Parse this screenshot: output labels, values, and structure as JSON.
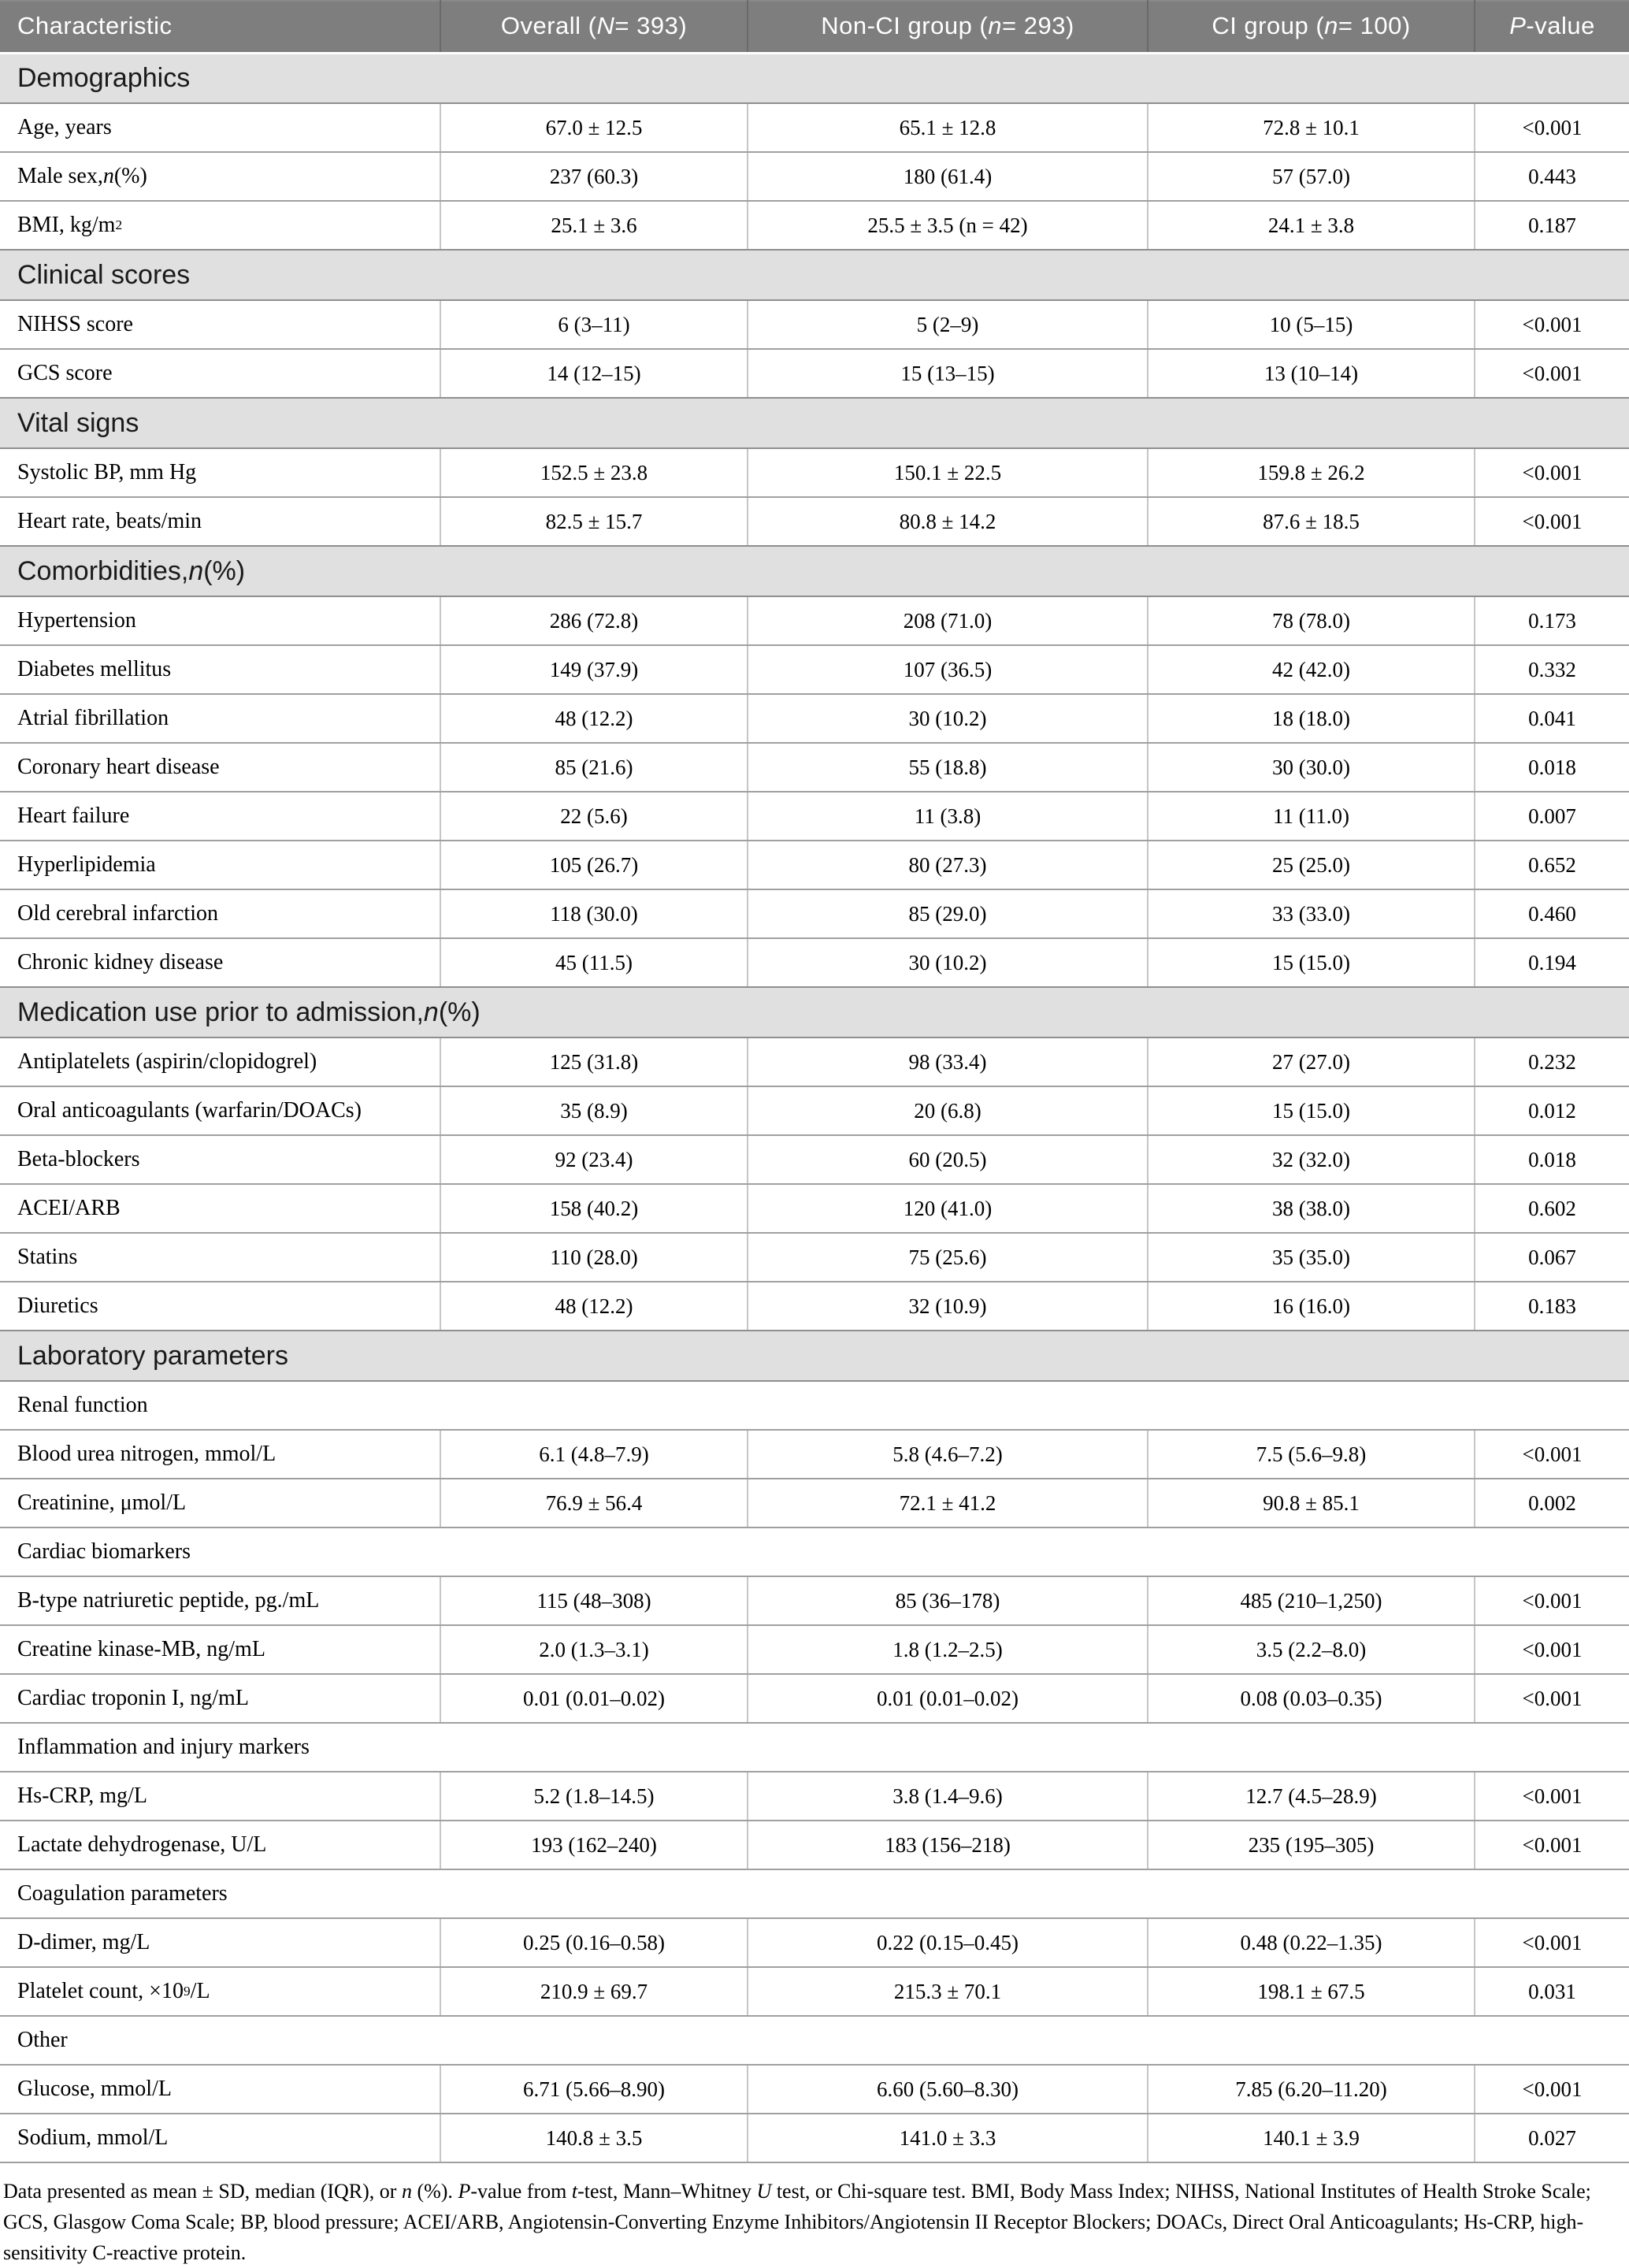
{
  "table": {
    "colors": {
      "page_bg": "#ffffff",
      "header_bg": "#7e7e7e",
      "header_text": "#ffffff",
      "header_divider": "#6a6a6a",
      "section_bg": "#e0e0e0",
      "section_text": "#1a1a1a",
      "body_text": "#111111",
      "row_divider": "#a0a0a0",
      "column_divider": "#c6c6c6"
    },
    "header": {
      "cells": [
        {
          "rich": "Characteristic"
        },
        {
          "rich": "Overall (<i>N</i> = 393)"
        },
        {
          "rich": "Non-CI group (<i>n</i> = 293)"
        },
        {
          "rich": "CI group (<i>n</i> = 100)"
        },
        {
          "rich": "<i>P</i>-value"
        }
      ]
    },
    "rows": [
      {
        "type": "section",
        "label": "Demographics"
      },
      {
        "type": "data",
        "label": "Age, years",
        "values": [
          "67.0 ± 12.5",
          "65.1 ± 12.8",
          "72.8 ± 10.1",
          "<0.001"
        ]
      },
      {
        "type": "data",
        "label": "Male sex, <i>n</i> (%)",
        "values": [
          "237 (60.3)",
          "180 (61.4)",
          "57 (57.0)",
          "0.443"
        ]
      },
      {
        "type": "data",
        "label": "BMI, kg/m<sup>2</sup>",
        "values": [
          "25.1 ± 3.6",
          "25.5 ± 3.5 (n = 42)",
          "24.1 ± 3.8",
          "0.187"
        ]
      },
      {
        "type": "section",
        "label": "Clinical scores"
      },
      {
        "type": "data",
        "label": "NIHSS score",
        "values": [
          "6 (3–11)",
          "5 (2–9)",
          "10 (5–15)",
          "<0.001"
        ]
      },
      {
        "type": "data",
        "label": "GCS score",
        "values": [
          "14 (12–15)",
          "15 (13–15)",
          "13 (10–14)",
          "<0.001"
        ]
      },
      {
        "type": "section",
        "label": "Vital signs"
      },
      {
        "type": "data",
        "label": "Systolic BP, mm Hg",
        "values": [
          "152.5 ± 23.8",
          "150.1 ± 22.5",
          "159.8 ± 26.2",
          "<0.001"
        ]
      },
      {
        "type": "data",
        "label": "Heart rate, beats/min",
        "values": [
          "82.5 ± 15.7",
          "80.8 ± 14.2",
          "87.6 ± 18.5",
          "<0.001"
        ]
      },
      {
        "type": "section",
        "label": "Comorbidities, <i>n</i> (%)"
      },
      {
        "type": "data",
        "label": "Hypertension",
        "values": [
          "286 (72.8)",
          "208 (71.0)",
          "78 (78.0)",
          "0.173"
        ]
      },
      {
        "type": "data",
        "label": "Diabetes mellitus",
        "values": [
          "149 (37.9)",
          "107 (36.5)",
          "42 (42.0)",
          "0.332"
        ]
      },
      {
        "type": "data",
        "label": "Atrial fibrillation",
        "values": [
          "48 (12.2)",
          "30 (10.2)",
          "18 (18.0)",
          "0.041"
        ]
      },
      {
        "type": "data",
        "label": "Coronary heart disease",
        "values": [
          "85 (21.6)",
          "55 (18.8)",
          "30 (30.0)",
          "0.018"
        ]
      },
      {
        "type": "data",
        "label": "Heart failure",
        "values": [
          "22 (5.6)",
          "11 (3.8)",
          "11 (11.0)",
          "0.007"
        ]
      },
      {
        "type": "data",
        "label": "Hyperlipidemia",
        "values": [
          "105 (26.7)",
          "80 (27.3)",
          "25 (25.0)",
          "0.652"
        ]
      },
      {
        "type": "data",
        "label": "Old cerebral infarction",
        "values": [
          "118 (30.0)",
          "85 (29.0)",
          "33 (33.0)",
          "0.460"
        ]
      },
      {
        "type": "data",
        "label": "Chronic kidney disease",
        "values": [
          "45 (11.5)",
          "30 (10.2)",
          "15 (15.0)",
          "0.194"
        ]
      },
      {
        "type": "section",
        "label": "Medication use prior to admission, <i>n</i> (%)"
      },
      {
        "type": "data",
        "label": "Antiplatelets (aspirin/clopidogrel)",
        "values": [
          "125 (31.8)",
          "98 (33.4)",
          "27 (27.0)",
          "0.232"
        ]
      },
      {
        "type": "data",
        "label": "Oral anticoagulants (warfarin/DOACs)",
        "values": [
          "35 (8.9)",
          "20 (6.8)",
          "15 (15.0)",
          "0.012"
        ]
      },
      {
        "type": "data",
        "label": "Beta-blockers",
        "values": [
          "92 (23.4)",
          "60 (20.5)",
          "32 (32.0)",
          "0.018"
        ]
      },
      {
        "type": "data",
        "label": "ACEI/ARB",
        "values": [
          "158 (40.2)",
          "120 (41.0)",
          "38 (38.0)",
          "0.602"
        ]
      },
      {
        "type": "data",
        "label": "Statins",
        "values": [
          "110 (28.0)",
          "75 (25.6)",
          "35 (35.0)",
          "0.067"
        ]
      },
      {
        "type": "data",
        "label": "Diuretics",
        "values": [
          "48 (12.2)",
          "32 (10.9)",
          "16 (16.0)",
          "0.183"
        ]
      },
      {
        "type": "section",
        "label": "Laboratory parameters"
      },
      {
        "type": "subsection",
        "label": "Renal function"
      },
      {
        "type": "data",
        "label": "Blood urea nitrogen, mmol/L",
        "values": [
          "6.1 (4.8–7.9)",
          "5.8 (4.6–7.2)",
          "7.5 (5.6–9.8)",
          "<0.001"
        ]
      },
      {
        "type": "data",
        "label": "Creatinine, μmol/L",
        "values": [
          "76.9 ± 56.4",
          "72.1 ± 41.2",
          "90.8 ± 85.1",
          "0.002"
        ]
      },
      {
        "type": "subsection",
        "label": "Cardiac biomarkers"
      },
      {
        "type": "data",
        "label": "B-type natriuretic peptide, pg./mL",
        "values": [
          "115 (48–308)",
          "85 (36–178)",
          "485 (210–1,250)",
          "<0.001"
        ]
      },
      {
        "type": "data",
        "label": "Creatine kinase-MB, ng/mL",
        "values": [
          "2.0 (1.3–3.1)",
          "1.8 (1.2–2.5)",
          "3.5 (2.2–8.0)",
          "<0.001"
        ]
      },
      {
        "type": "data",
        "label": "Cardiac troponin I, ng/mL",
        "values": [
          "0.01 (0.01–0.02)",
          "0.01 (0.01–0.02)",
          "0.08 (0.03–0.35)",
          "<0.001"
        ]
      },
      {
        "type": "subsection",
        "label": "Inflammation and injury markers"
      },
      {
        "type": "data",
        "label": "Hs-CRP, mg/L",
        "values": [
          "5.2 (1.8–14.5)",
          "3.8 (1.4–9.6)",
          "12.7 (4.5–28.9)",
          "<0.001"
        ]
      },
      {
        "type": "data",
        "label": "Lactate dehydrogenase, U/L",
        "values": [
          "193 (162–240)",
          "183 (156–218)",
          "235 (195–305)",
          "<0.001"
        ]
      },
      {
        "type": "subsection",
        "label": "Coagulation parameters"
      },
      {
        "type": "data",
        "label": "D-dimer, mg/L",
        "values": [
          "0.25 (0.16–0.58)",
          "0.22 (0.15–0.45)",
          "0.48 (0.22–1.35)",
          "<0.001"
        ]
      },
      {
        "type": "data",
        "label": "Platelet count, ×10<sup>9</sup>/L",
        "values": [
          "210.9 ± 69.7",
          "215.3 ± 70.1",
          "198.1 ± 67.5",
          "0.031"
        ]
      },
      {
        "type": "subsection",
        "label": "Other"
      },
      {
        "type": "data",
        "label": "Glucose, mmol/L",
        "values": [
          "6.71 (5.66–8.90)",
          "6.60 (5.60–8.30)",
          "7.85 (6.20–11.20)",
          "<0.001"
        ]
      },
      {
        "type": "data",
        "label": "Sodium, mmol/L",
        "values": [
          "140.8 ± 3.5",
          "141.0 ± 3.3",
          "140.1 ± 3.9",
          "0.027"
        ]
      }
    ]
  },
  "footnote": {
    "rich": "Data presented as mean ± SD, median (IQR), or <i>n</i> (%). <i>P</i>-value from <i>t</i>-test, Mann–Whitney <i>U</i> test, or Chi-square test. BMI, Body Mass Index; NIHSS, National Institutes of Health Stroke Scale; GCS, Glasgow Coma Scale; BP, blood pressure; ACEI/ARB, Angiotensin-Converting Enzyme Inhibitors/Angiotensin II Receptor Blockers; DOACs, Direct Oral Anticoagulants; Hs-CRP, high-sensitivity C-reactive protein."
  }
}
